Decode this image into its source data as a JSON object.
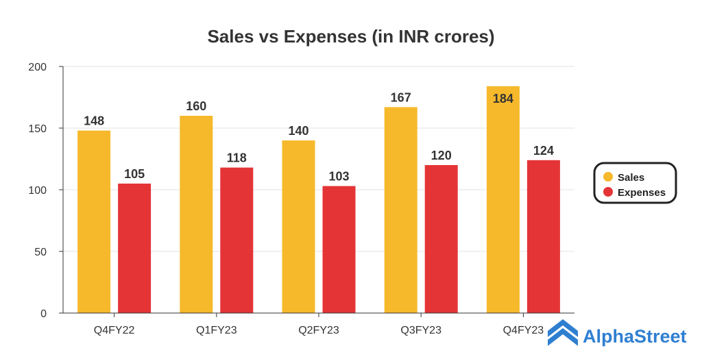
{
  "chart_data": {
    "type": "bar",
    "title": "Sales vs Expenses (in INR crores)",
    "categories": [
      "Q4FY22",
      "Q1FY23",
      "Q2FY23",
      "Q3FY23",
      "Q4FY23"
    ],
    "series": [
      {
        "name": "Sales",
        "values": [
          148,
          160,
          140,
          167,
          184
        ],
        "color": "#f6b92b"
      },
      {
        "name": "Expenses",
        "values": [
          105,
          118,
          103,
          120,
          124
        ],
        "color": "#e43436"
      }
    ],
    "ylim": [
      0,
      200
    ],
    "yticks": [
      0,
      50,
      100,
      150,
      200
    ],
    "xlabel": "",
    "ylabel": "",
    "grid": true,
    "legend": "right"
  },
  "brand": {
    "name": "AlphaStreet",
    "color": "#2f7fd1",
    "icon": "alphastreet-logo-icon"
  }
}
